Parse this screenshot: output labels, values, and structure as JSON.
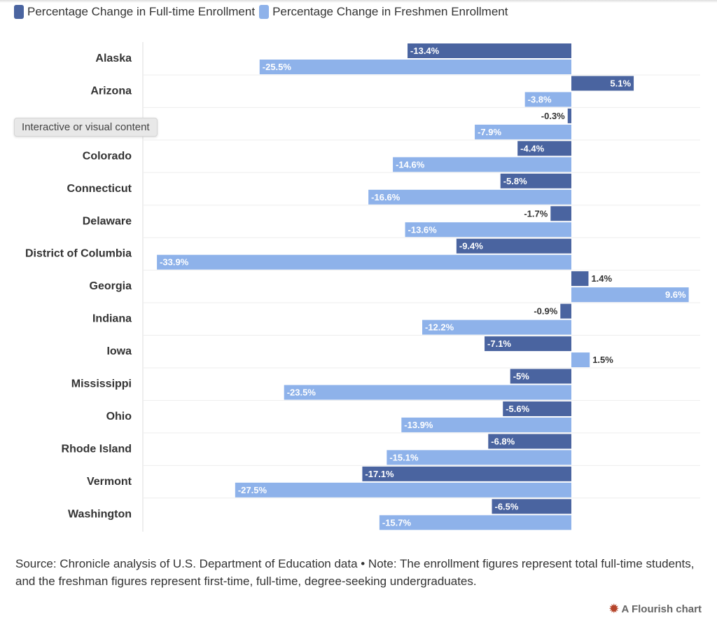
{
  "chart_data": {
    "type": "bar",
    "orientation": "horizontal",
    "categories": [
      "Alaska",
      "Arizona",
      "",
      "Colorado",
      "Connecticut",
      "Delaware",
      "District of Columbia",
      "Georgia",
      "Indiana",
      "Iowa",
      "Mississippi",
      "Ohio",
      "Rhode Island",
      "Vermont",
      "Washington"
    ],
    "series": [
      {
        "name": "Percentage Change in Full-time Enrollment",
        "color": "#4a64a0",
        "values": [
          -13.4,
          5.1,
          -0.3,
          -4.4,
          -5.8,
          -1.7,
          -9.4,
          1.4,
          -0.9,
          -7.1,
          -5,
          -5.6,
          -6.8,
          -17.1,
          -6.5
        ]
      },
      {
        "name": "Percentage Change in Freshmen Enrollment",
        "color": "#8eb2ea",
        "values": [
          -25.5,
          -3.8,
          -7.9,
          -14.6,
          -16.6,
          -13.6,
          -33.9,
          9.6,
          -12.2,
          1.5,
          -23.5,
          -13.9,
          -15.1,
          -27.5,
          -15.7
        ]
      }
    ],
    "value_suffix": "%",
    "xlim": [
      -35,
      9.6
    ],
    "legend": "top-left"
  },
  "tooltip": "Interactive or visual content",
  "source": "Source: Chronicle analysis of U.S. Department of Education data • Note: The enrollment figures represent total full-time students, and the freshman figures represent first-time, full-time, degree-seeking undergraduates.",
  "credit": "A Flourish chart"
}
